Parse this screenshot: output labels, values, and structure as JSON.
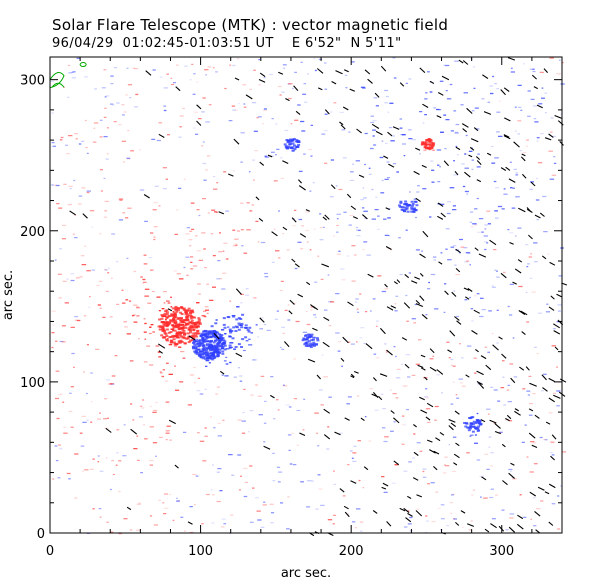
{
  "header": {
    "title": "Solar Flare Telescope (MTK) : vector magnetic field",
    "date": "96/04/29",
    "time_range": "01:02:45-01:03:51 UT",
    "position": "E 6'52\"  N 5'11\""
  },
  "chart_data": {
    "type": "heatmap",
    "title": "Solar Flare Telescope (MTK) : vector magnetic field",
    "xlabel": "arc sec.",
    "ylabel": "arc sec.",
    "xlim": [
      0,
      340
    ],
    "ylim": [
      0,
      315
    ],
    "x_ticks": [
      0,
      100,
      200,
      300
    ],
    "y_ticks": [
      0,
      100,
      200,
      300
    ],
    "grid": false,
    "colors": {
      "positive_polarity": "#ff2a2a",
      "negative_polarity": "#3040ff",
      "contour": "#00aa00",
      "vectors": "#000000"
    },
    "regions": [
      {
        "polarity": "positive",
        "center": [
          85,
          138
        ],
        "radius": 14,
        "strength": "strong"
      },
      {
        "polarity": "negative",
        "center": [
          105,
          125
        ],
        "radius": 11,
        "strength": "strong"
      },
      {
        "polarity": "negative",
        "center": [
          120,
          135
        ],
        "radius": 14,
        "strength": "moderate"
      },
      {
        "polarity": "positive",
        "center": [
          250,
          258
        ],
        "radius": 4,
        "strength": "moderate"
      },
      {
        "polarity": "negative",
        "center": [
          160,
          258
        ],
        "radius": 5,
        "strength": "moderate"
      },
      {
        "polarity": "negative",
        "center": [
          237,
          217
        ],
        "radius": 6,
        "strength": "moderate"
      },
      {
        "polarity": "negative",
        "center": [
          172,
          128
        ],
        "radius": 5,
        "strength": "moderate"
      },
      {
        "polarity": "negative",
        "center": [
          280,
          72
        ],
        "radius": 6,
        "strength": "moderate"
      },
      {
        "polarity": "positive",
        "center": [
          225,
          42
        ],
        "radius": 5,
        "strength": "weak"
      },
      {
        "polarity": "negative",
        "center": [
          113,
          43
        ],
        "radius": 6,
        "strength": "weak"
      },
      {
        "polarity": "positive",
        "center": [
          115,
          195
        ],
        "radius": 30,
        "strength": "diffuse"
      },
      {
        "polarity": "positive",
        "center": [
          55,
          120
        ],
        "radius": 45,
        "strength": "diffuse"
      },
      {
        "polarity": "negative",
        "center": [
          270,
          240
        ],
        "radius": 60,
        "strength": "diffuse"
      },
      {
        "polarity": "negative",
        "center": [
          240,
          290
        ],
        "radius": 50,
        "strength": "diffuse"
      }
    ]
  }
}
